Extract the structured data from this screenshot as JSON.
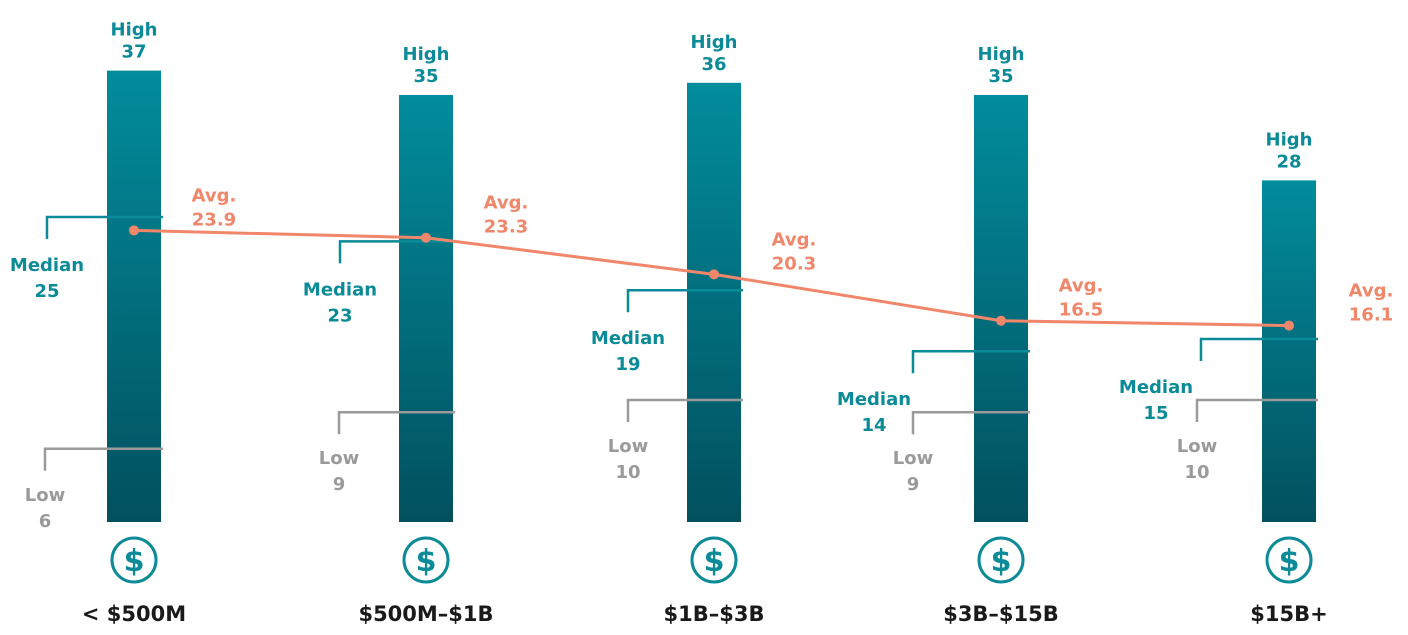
{
  "chart_data": {
    "type": "bar",
    "description_note": "",
    "categories": [
      "< $500M",
      "$500M–$1B",
      "$1B–$3B",
      "$3B–$15B",
      "$15B+"
    ],
    "series": [
      {
        "name": "High",
        "values": [
          37,
          35,
          36,
          35,
          28
        ]
      },
      {
        "name": "Median",
        "values": [
          25,
          23,
          19,
          14,
          15
        ]
      },
      {
        "name": "Low",
        "values": [
          6,
          9,
          10,
          9,
          10
        ]
      },
      {
        "name": "Avg.",
        "values": [
          23.9,
          23.3,
          20.3,
          16.5,
          16.1
        ]
      }
    ],
    "labels": {
      "high": "High",
      "median": "Median",
      "low": "Low",
      "avg": "Avg."
    },
    "icon": "dollar-coin-icon",
    "ylim": [
      0,
      40
    ],
    "colors": {
      "bar_top": "#028C9C",
      "bar_bottom": "#02505E",
      "high": "#0B8A97",
      "median": "#0B8A97",
      "low": "#9A9A9A",
      "avg": "#F0866A",
      "category": "#1A1A1A",
      "icon": "#0B8A97"
    }
  }
}
